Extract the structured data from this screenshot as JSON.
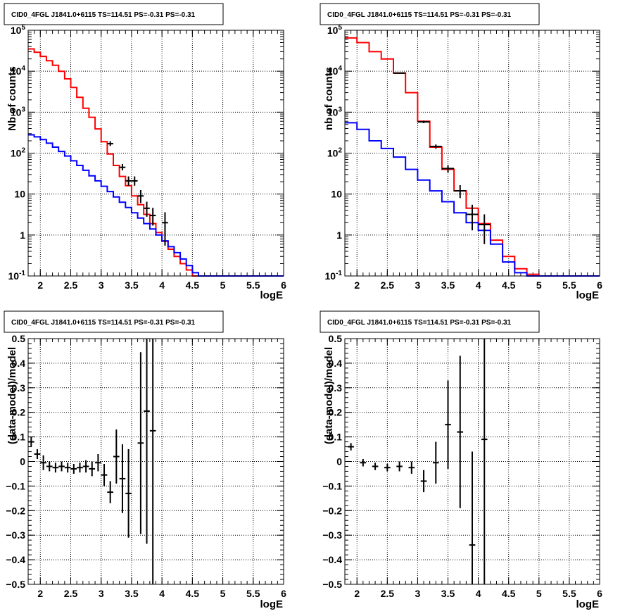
{
  "colors": {
    "data": "#000000",
    "total_model": "#ff0000",
    "component_model": "#0000ff"
  },
  "panels": [
    {
      "title": "CID0_4FGL J1841.0+6115 TS=114.51 PS=-0.31 PS=-0.31",
      "xlabel": "logE",
      "ylabel": "Nb of counts"
    },
    {
      "title": "CID0_4FGL J1841.0+6115 TS=114.51 PS=-0.31 PS=-0.31",
      "xlabel": "logE",
      "ylabel": "nb of counts"
    },
    {
      "title": "CID0_4FGL J1841.0+6115 TS=114.51 PS=-0.31 PS=-0.31",
      "xlabel": "logE",
      "ylabel": "(data-model)/model"
    },
    {
      "title": "CID0_4FGL J1841.0+6115 TS=114.51 PS=-0.31 PS=-0.31",
      "xlabel": "logE",
      "ylabel": "(data-model)/model"
    }
  ],
  "chart_data": [
    {
      "type": "line",
      "title": "CID0_4FGL J1841.0+6115 TS=114.51 PS=-0.31 PS=-0.31",
      "xlabel": "logE",
      "ylabel": "Nb of counts",
      "xlim": [
        1.8,
        6.0
      ],
      "ylim": [
        0.1,
        100000
      ],
      "yscale": "log",
      "grid": true,
      "x_ticks": [
        "2",
        "2.5",
        "3",
        "3.5",
        "4",
        "4.5",
        "5",
        "5.5",
        "6"
      ],
      "y_ticks": [
        "10^-1",
        "1",
        "10",
        "10^2",
        "10^3",
        "10^4",
        "10^5"
      ],
      "bin_edges": [
        1.8,
        1.9,
        2.0,
        2.1,
        2.2,
        2.3,
        2.4,
        2.5,
        2.6,
        2.7,
        2.8,
        2.9,
        3.0,
        3.1,
        3.2,
        3.3,
        3.4,
        3.5,
        3.6,
        3.7,
        3.8,
        3.9,
        4.0,
        4.1,
        4.2,
        4.3,
        4.4,
        4.5,
        4.6,
        4.7,
        4.8,
        4.9,
        5.0,
        5.1,
        5.2,
        5.3,
        5.4,
        5.5,
        5.6,
        5.7,
        5.8,
        5.9,
        6.0
      ],
      "series": [
        {
          "role": "total_model",
          "values": [
            35000,
            29000,
            23000,
            18000,
            14000,
            10000,
            6500,
            4000,
            2300,
            1250,
            750,
            390,
            190,
            95,
            50,
            27,
            16,
            9,
            5.5,
            3.2,
            1.9,
            1.15,
            0.7,
            0.45,
            0.3,
            0.2,
            0.14,
            0.1,
            0.1,
            0.1,
            0.1,
            0.1,
            0.1,
            0.1,
            0.1,
            0.1,
            0.1,
            0.1,
            0.1,
            0.1,
            0.1,
            0.1
          ]
        },
        {
          "role": "component_model",
          "values": [
            280,
            250,
            215,
            175,
            140,
            110,
            85,
            65,
            50,
            38,
            28,
            21,
            15.5,
            11.5,
            8.5,
            6.3,
            4.7,
            3.5,
            2.6,
            1.9,
            1.4,
            1.0,
            0.72,
            0.52,
            0.37,
            0.26,
            0.18,
            0.12,
            0.1,
            0.1,
            0.1,
            0.1,
            0.1,
            0.1,
            0.1,
            0.1,
            0.1,
            0.1,
            0.1,
            0.1,
            0.1,
            0.1
          ]
        },
        {
          "role": "data",
          "points": [
            {
              "x": 3.15,
              "y": 170,
              "ylo": 150,
              "yhi": 195
            },
            {
              "x": 3.35,
              "y": 45,
              "ylo": 38,
              "yhi": 54
            },
            {
              "x": 3.45,
              "y": 21,
              "ylo": 16,
              "yhi": 27
            },
            {
              "x": 3.55,
              "y": 21,
              "ylo": 16,
              "yhi": 27
            },
            {
              "x": 3.65,
              "y": 9,
              "ylo": 6,
              "yhi": 12.5
            },
            {
              "x": 3.75,
              "y": 4.5,
              "ylo": 2.8,
              "yhi": 6.5
            },
            {
              "x": 3.85,
              "y": 3,
              "ylo": 1.7,
              "yhi": 4.6
            },
            {
              "x": 4.05,
              "y": 2,
              "ylo": 0.55,
              "yhi": 3.6
            }
          ]
        }
      ]
    },
    {
      "type": "line",
      "title": "CID0_4FGL J1841.0+6115 TS=114.51 PS=-0.31 PS=-0.31",
      "xlabel": "logE",
      "ylabel": "nb of counts",
      "xlim": [
        1.8,
        6.0
      ],
      "ylim": [
        0.1,
        100000
      ],
      "yscale": "log",
      "grid": true,
      "x_ticks": [
        "2",
        "2.5",
        "3",
        "3.5",
        "4",
        "4.5",
        "5",
        "5.5",
        "6"
      ],
      "y_ticks": [
        "10^-1",
        "1",
        "10",
        "10^2",
        "10^3",
        "10^4",
        "10^5"
      ],
      "bin_edges": [
        1.8,
        2.0,
        2.2,
        2.4,
        2.6,
        2.8,
        3.0,
        3.2,
        3.4,
        3.6,
        3.8,
        4.0,
        4.2,
        4.4,
        4.6,
        4.8,
        5.0,
        5.2,
        5.4,
        5.6,
        5.8,
        6.0
      ],
      "series": [
        {
          "role": "total_model",
          "values": [
            65000,
            50000,
            30000,
            20000,
            9000,
            3000,
            600,
            140,
            40,
            12,
            4.5,
            1.9,
            0.75,
            0.3,
            0.15,
            0.11,
            0.1,
            0.1,
            0.1,
            0.1,
            0.1
          ]
        },
        {
          "role": "component_model",
          "values": [
            550,
            380,
            200,
            130,
            80,
            40,
            22,
            12,
            6.5,
            3.5,
            2,
            1.3,
            0.6,
            0.22,
            0.12,
            0.1,
            0.1,
            0.1,
            0.1,
            0.1,
            0.1
          ]
        },
        {
          "role": "data",
          "points": [
            {
              "x": 2.7,
              "y": 9000,
              "ylo": 8700,
              "yhi": 9300
            },
            {
              "x": 3.1,
              "y": 580,
              "ylo": 540,
              "yhi": 620
            },
            {
              "x": 3.3,
              "y": 145,
              "ylo": 128,
              "yhi": 162
            },
            {
              "x": 3.5,
              "y": 42,
              "ylo": 33,
              "yhi": 51
            },
            {
              "x": 3.7,
              "y": 12,
              "ylo": 8,
              "yhi": 16.5
            },
            {
              "x": 3.9,
              "y": 3.2,
              "ylo": 1.3,
              "yhi": 5.5
            },
            {
              "x": 4.1,
              "y": 1.8,
              "ylo": 0.6,
              "yhi": 3.2
            }
          ]
        }
      ]
    },
    {
      "type": "scatter",
      "title": "CID0_4FGL J1841.0+6115 TS=114.51 PS=-0.31 PS=-0.31",
      "xlabel": "logE",
      "ylabel": "(data-model)/model",
      "xlim": [
        1.8,
        6.0
      ],
      "ylim": [
        -0.5,
        0.5
      ],
      "grid": true,
      "x_ticks": [
        "2",
        "2.5",
        "3",
        "3.5",
        "4",
        "4.5",
        "5",
        "5.5",
        "6"
      ],
      "y_ticks": [
        "-0.5",
        "-0.4",
        "-0.3",
        "-0.2",
        "-0.1",
        "0",
        "0.1",
        "0.2",
        "0.3",
        "0.4",
        "0.5"
      ],
      "series": [
        {
          "role": "residuals",
          "points": [
            {
              "x": 1.85,
              "y": 0.08,
              "yerr": 0.02
            },
            {
              "x": 1.95,
              "y": 0.03,
              "yerr": 0.02
            },
            {
              "x": 2.05,
              "y": -0.005,
              "yerr": 0.03
            },
            {
              "x": 2.15,
              "y": -0.02,
              "yerr": 0.02
            },
            {
              "x": 2.25,
              "y": -0.025,
              "yerr": 0.02
            },
            {
              "x": 2.35,
              "y": -0.02,
              "yerr": 0.02
            },
            {
              "x": 2.45,
              "y": -0.025,
              "yerr": 0.02
            },
            {
              "x": 2.55,
              "y": -0.03,
              "yerr": 0.02
            },
            {
              "x": 2.65,
              "y": -0.025,
              "yerr": 0.02
            },
            {
              "x": 2.75,
              "y": -0.02,
              "yerr": 0.025
            },
            {
              "x": 2.85,
              "y": -0.03,
              "yerr": 0.03
            },
            {
              "x": 2.95,
              "y": -0.005,
              "yerr": 0.035
            },
            {
              "x": 3.05,
              "y": -0.055,
              "yerr": 0.045
            },
            {
              "x": 3.15,
              "y": -0.125,
              "yerr": 0.045
            },
            {
              "x": 3.25,
              "y": 0.02,
              "yerr": 0.11
            },
            {
              "x": 3.35,
              "y": -0.07,
              "yerr": 0.14
            },
            {
              "x": 3.45,
              "y": -0.13,
              "yerr": 0.18
            },
            {
              "x": 3.65,
              "y": 0.075,
              "yerr": 0.37
            },
            {
              "x": 3.75,
              "y": 0.205,
              "yerr": 0.54
            },
            {
              "x": 3.85,
              "y": 0.125,
              "yerr": 0.9
            }
          ]
        }
      ]
    },
    {
      "type": "scatter",
      "title": "CID0_4FGL J1841.0+6115 TS=114.51 PS=-0.31 PS=-0.31",
      "xlabel": "logE",
      "ylabel": "(data-model)/model",
      "xlim": [
        1.8,
        6.0
      ],
      "ylim": [
        -0.5,
        0.5
      ],
      "grid": true,
      "x_ticks": [
        "2",
        "2.5",
        "3",
        "3.5",
        "4",
        "4.5",
        "5",
        "5.5",
        "6"
      ],
      "y_ticks": [
        "-0.5",
        "-0.4",
        "-0.3",
        "-0.2",
        "-0.1",
        "0",
        "0.1",
        "0.2",
        "0.3",
        "0.4",
        "0.5"
      ],
      "series": [
        {
          "role": "residuals",
          "points": [
            {
              "x": 1.9,
              "y": 0.06,
              "yerr": 0.015
            },
            {
              "x": 2.1,
              "y": -0.005,
              "yerr": 0.015
            },
            {
              "x": 2.3,
              "y": -0.02,
              "yerr": 0.015
            },
            {
              "x": 2.5,
              "y": -0.025,
              "yerr": 0.015
            },
            {
              "x": 2.7,
              "y": -0.02,
              "yerr": 0.02
            },
            {
              "x": 2.9,
              "y": -0.025,
              "yerr": 0.025
            },
            {
              "x": 3.1,
              "y": -0.08,
              "yerr": 0.045
            },
            {
              "x": 3.3,
              "y": -0.005,
              "yerr": 0.085
            },
            {
              "x": 3.5,
              "y": 0.15,
              "yerr": 0.18
            },
            {
              "x": 3.7,
              "y": 0.12,
              "yerr": 0.31
            },
            {
              "x": 3.9,
              "y": -0.34,
              "yerr": 0.38
            },
            {
              "x": 4.1,
              "y": 0.09,
              "yerr": 0.7
            }
          ]
        }
      ]
    }
  ]
}
